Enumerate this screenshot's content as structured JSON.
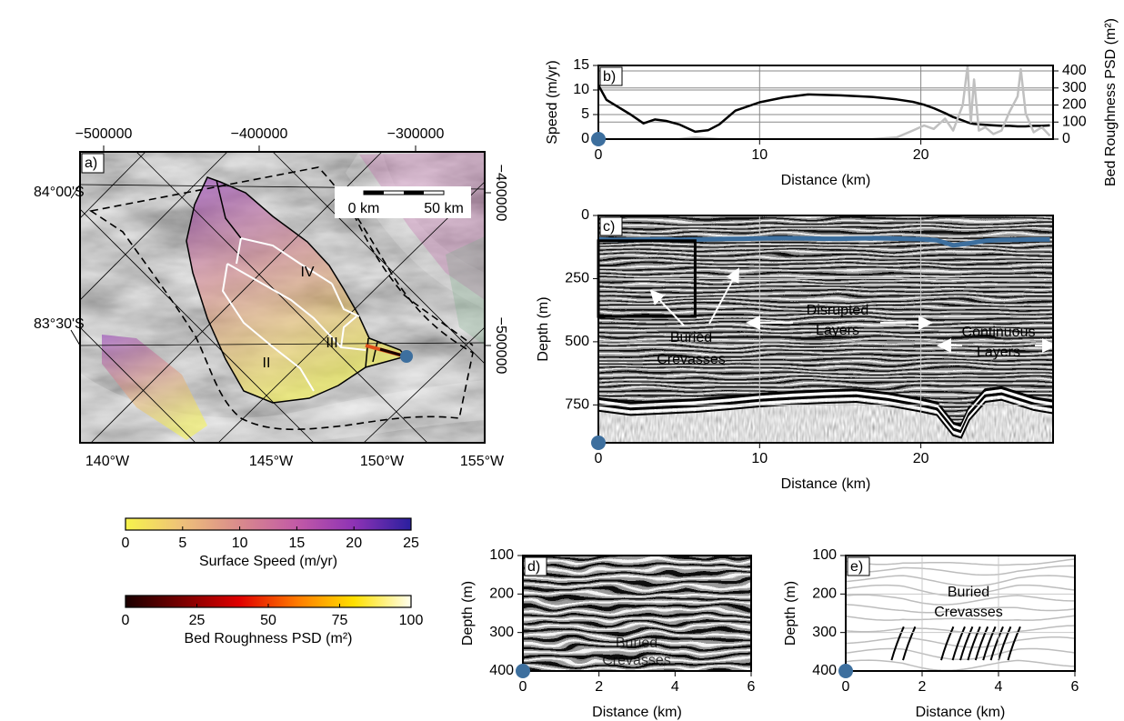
{
  "map": {
    "label": "a)",
    "top_ticks": [
      "−500000",
      "−400000",
      "−300000"
    ],
    "right_ticks": [
      "−400000",
      "−500000"
    ],
    "left_ticks": [
      "84°00'S",
      "83°30'S"
    ],
    "bottom_ticks": [
      "140°W",
      "145°W",
      "150°W",
      "155°W"
    ],
    "scale_bar": [
      "0 km",
      "50 km"
    ],
    "regions": [
      "II",
      "III",
      "IV"
    ]
  },
  "colorbars": [
    {
      "label": "Surface Speed (m/yr)",
      "lim": [
        0,
        25
      ],
      "ticks": [
        0,
        5,
        10,
        15,
        20,
        25
      ],
      "colors": [
        "#f7f34c",
        "#eec07a",
        "#d98a8c",
        "#c25aa6",
        "#8e33b5",
        "#2a1f9e"
      ]
    },
    {
      "label": "Bed Roughness PSD (m²)",
      "lim": [
        0,
        100
      ],
      "ticks": [
        0,
        25,
        50,
        75,
        100
      ],
      "colors": [
        "#1a0000",
        "#7a0000",
        "#e00000",
        "#ff7a00",
        "#ffe000",
        "#ffffee"
      ]
    }
  ],
  "chart_data": [
    {
      "type": "line",
      "label": "b)",
      "xlabel": "Distance (km)",
      "ylabel": "Speed (m/yr)",
      "y2label": "Bed Roughness PSD (m²)",
      "x": [
        0,
        0.5,
        1,
        2,
        2.8,
        3.5,
        4.2,
        5,
        6,
        6.8,
        7.5,
        8.5,
        10,
        11.5,
        13,
        15,
        17,
        18.5,
        19.5,
        20.2,
        20.8,
        21.5,
        22,
        22.6,
        22.9,
        23.1,
        23.3,
        23.6,
        24,
        24.5,
        25,
        25.5,
        26,
        26.2,
        26.5,
        27,
        27.5,
        28
      ],
      "xlim": [
        0,
        28.2
      ],
      "xticks": [
        0,
        10,
        20
      ],
      "ylim": [
        0,
        15
      ],
      "yticks": [
        0,
        5,
        10,
        15
      ],
      "y2lim": [
        0,
        432
      ],
      "y2ticks": [
        0,
        100,
        200,
        300,
        400
      ],
      "grid": true,
      "series": [
        {
          "color": "#000000",
          "values": [
            11,
            8,
            7,
            5,
            3.2,
            4,
            3.7,
            3,
            1.5,
            1.8,
            3,
            5.8,
            7.5,
            8.5,
            9.1,
            8.9,
            8.6,
            8.1,
            7.6,
            7,
            6.3,
            5.3,
            4.5,
            3.8,
            3.4,
            3.2,
            3.1,
            3,
            2.9,
            2.8,
            2.7,
            2.7,
            2.6,
            2.6,
            2.6,
            2.7,
            2.7,
            2.8
          ]
        },
        {
          "color": "#c0c0c0",
          "axis": "y2",
          "values": [
            5,
            0,
            0,
            0,
            0,
            0,
            0,
            0,
            10,
            5,
            0,
            0,
            0,
            0,
            0,
            0,
            0,
            10,
            50,
            80,
            60,
            120,
            50,
            200,
            430,
            100,
            350,
            50,
            70,
            30,
            50,
            160,
            250,
            410,
            150,
            40,
            70,
            20
          ]
        }
      ]
    },
    {
      "type": "radargram",
      "label": "c)",
      "xlabel": "Distance (km)",
      "ylabel": "Depth (m)",
      "x": [
        0,
        1,
        2,
        3,
        4,
        5,
        6,
        7,
        8,
        9,
        10,
        11,
        12,
        13,
        14,
        15,
        16,
        17,
        18,
        19,
        20,
        21,
        22,
        23,
        24,
        25,
        26,
        27,
        28
      ],
      "xlim": [
        0,
        28.2
      ],
      "xticks": [
        0,
        10,
        20
      ],
      "ylim": [
        900,
        0
      ],
      "yticks": [
        0,
        250,
        500,
        750
      ],
      "grid": true,
      "series": [
        {
          "color": "#3d6f9e",
          "values": [
            95,
            97,
            96,
            95,
            94,
            96,
            95,
            94,
            93,
            92,
            91,
            90,
            90,
            91,
            92,
            92,
            91,
            90,
            91,
            92,
            94,
            98,
            118,
            110,
            100,
            97,
            96,
            95,
            95
          ]
        }
      ],
      "annotations": [
        "Buried",
        "Crevasses",
        "Disrupted",
        "Layers",
        "Continuous",
        "Layers"
      ]
    },
    {
      "type": "radargram",
      "label": "d)",
      "xlabel": "Distance (km)",
      "ylabel": "Depth (m)",
      "xlim": [
        0,
        6
      ],
      "xticks": [
        0,
        2,
        4,
        6
      ],
      "ylim": [
        400,
        100
      ],
      "yticks": [
        100,
        200,
        300,
        400
      ],
      "grid": false,
      "annotations": [
        "Buried",
        "Crevasses"
      ]
    },
    {
      "type": "tracing",
      "label": "e)",
      "xlabel": "Distance (km)",
      "ylabel": "Depth (m)",
      "xlim": [
        0,
        6
      ],
      "xticks": [
        0,
        2,
        4,
        6
      ],
      "ylim": [
        400,
        100
      ],
      "yticks": [
        100,
        200,
        300,
        400
      ],
      "grid": true,
      "annotations": [
        "Buried",
        "Crevasses"
      ]
    }
  ]
}
